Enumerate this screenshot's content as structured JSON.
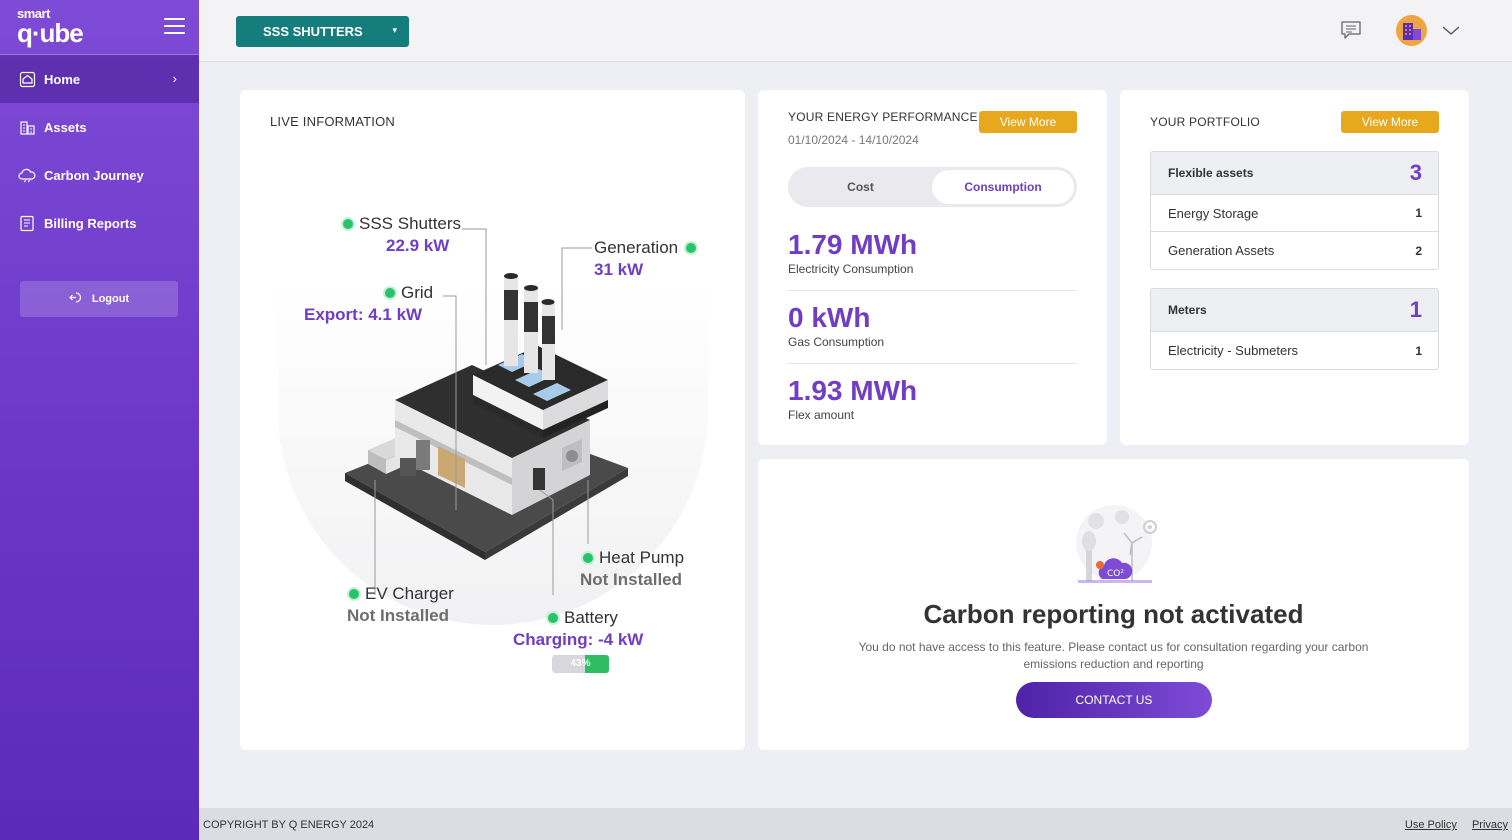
{
  "sidebar": {
    "logo_top": "smart",
    "logo_bottom": "q·ube",
    "items": [
      {
        "label": "Home"
      },
      {
        "label": "Assets"
      },
      {
        "label": "Carbon Journey"
      },
      {
        "label": "Billing Reports"
      }
    ],
    "logout": "Logout"
  },
  "header": {
    "site": "SSS SHUTTERS"
  },
  "live": {
    "title": "LIVE INFORMATION",
    "site_name": "SSS Shutters",
    "site_value": "22.9 kW",
    "grid_name": "Grid",
    "grid_value": "Export: 4.1 kW",
    "gen_name": "Generation",
    "gen_value": "31 kW",
    "heat_name": "Heat Pump",
    "heat_value": "Not Installed",
    "ev_name": "EV Charger",
    "ev_value": "Not Installed",
    "bat_name": "Battery",
    "bat_value": "Charging: -4 kW",
    "bat_pct": "43%",
    "bat_level": 0.43
  },
  "performance": {
    "title": "YOUR ENERGY PERFORMANCE",
    "view_more": "View More",
    "date_range": "01/10/2024 - 14/10/2024",
    "toggle_cost": "Cost",
    "toggle_consumption": "Consumption",
    "metrics": [
      {
        "value": "1.79 MWh",
        "label": "Electricity Consumption"
      },
      {
        "value": "0 kWh",
        "label": "Gas Consumption"
      },
      {
        "value": "1.93 MWh",
        "label": "Flex amount"
      }
    ]
  },
  "portfolio": {
    "title": "YOUR PORTFOLIO",
    "view_more": "View More",
    "flex": {
      "label": "Flexible assets",
      "count": "3",
      "rows": [
        {
          "label": "Energy Storage",
          "count": "1"
        },
        {
          "label": "Generation Assets",
          "count": "2"
        }
      ]
    },
    "meters": {
      "label": "Meters",
      "count": "1",
      "rows": [
        {
          "label": "Electricity - Submeters",
          "count": "1"
        }
      ]
    }
  },
  "carbon": {
    "title": "Carbon reporting not activated",
    "description": "You do not have access to this feature. Please contact us for consultation regarding your carbon emissions reduction and reporting",
    "contact": "CONTACT US",
    "co2": "CO²"
  },
  "footer": {
    "copyright": "COPYRIGHT BY Q ENERGY 2024",
    "use_policy": "Use Policy",
    "privacy": "Privacy"
  },
  "colors": {
    "accent": "#6f3ec4",
    "sidebar": "#7e4bd6",
    "teal": "#167d7d",
    "orange": "#e8a81e",
    "green": "#28c36a"
  }
}
